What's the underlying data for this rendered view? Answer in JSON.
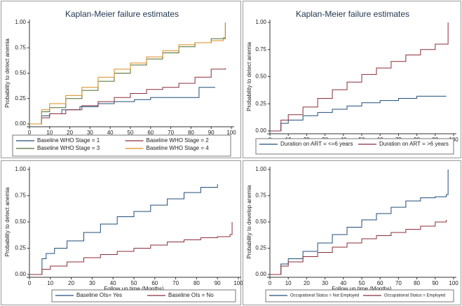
{
  "panels": [
    {
      "title": "Kaplan-Meier failure estimates",
      "ylabel": "Probability to detect anemia",
      "xlabel": "Follow up time (Months)",
      "xticks": [
        0,
        10,
        20,
        30,
        40,
        50,
        60,
        70,
        80,
        90,
        100
      ],
      "yticks": [
        "0.00",
        "0.25",
        "0.50",
        "0.75",
        "1.00"
      ],
      "legend": [
        "Baseline WHO Stage = 1",
        "Baseline WHO Stage = 2",
        "Baseline WHO Stage = 3",
        "Baseline WHO Stage = 4"
      ]
    },
    {
      "title": "Kaplan-Meier failure estimates",
      "ylabel": "Probability to detect anemia",
      "xlabel": "Follow up time (Months)",
      "xticks": [
        0,
        10,
        20,
        30,
        40,
        50,
        60,
        70,
        80,
        90,
        100
      ],
      "yticks": [
        "0.00",
        "0.25",
        "0.50",
        "0.75",
        "1.00"
      ],
      "legend": [
        "Duration on ART = <=6 years",
        "Duration on ART = >6 years"
      ]
    },
    {
      "title": "",
      "ylabel": "Probability to detect anemia",
      "xlabel": "Follow up time (Months)",
      "xticks": [
        0,
        10,
        20,
        30,
        40,
        50,
        60,
        70,
        80,
        90,
        100
      ],
      "yticks": [
        "0.00",
        "0.25",
        "0.50",
        "0.75",
        "1.00"
      ],
      "legend": [
        "Baseline OIs= Yes",
        "Baseline OIs = No"
      ]
    },
    {
      "title": "",
      "ylabel": "Probability to develop anemia",
      "xlabel": "Follow up time (Months)",
      "xticks": [
        0,
        10,
        20,
        30,
        40,
        50,
        60,
        70,
        80,
        90,
        100
      ],
      "yticks": [
        "0.00",
        "0.25",
        "0.50",
        "0.75",
        "1.00"
      ],
      "legend": [
        "Occupational Status = Not Employed",
        "Occupational Status = Employed"
      ]
    }
  ],
  "chart_data": [
    {
      "type": "line",
      "title": "Kaplan-Meier failure estimates",
      "xlabel": "Follow up time (Months)",
      "ylabel": "Probability to detect anemia",
      "xlim": [
        0,
        100
      ],
      "ylim": [
        0,
        1
      ],
      "grid": false,
      "legend_position": "bottom",
      "series": [
        {
          "name": "Baseline WHO Stage = 1",
          "color": "#1f4e79",
          "x": [
            0,
            6,
            10,
            16,
            25,
            34,
            42,
            52,
            60,
            70,
            83,
            84,
            92
          ],
          "y": [
            0,
            0.08,
            0.1,
            0.14,
            0.17,
            0.2,
            0.22,
            0.24,
            0.26,
            0.26,
            0.26,
            0.36,
            0.36
          ]
        },
        {
          "name": "Baseline WHO Stage = 2",
          "color": "#8b2d3a",
          "x": [
            0,
            6,
            10,
            18,
            26,
            34,
            42,
            50,
            58,
            66,
            74,
            82,
            90,
            97
          ],
          "y": [
            0,
            0.06,
            0.1,
            0.14,
            0.18,
            0.22,
            0.26,
            0.3,
            0.34,
            0.36,
            0.4,
            0.46,
            0.54,
            0.55
          ]
        },
        {
          "name": "Baseline WHO Stage = 3",
          "color": "#4a6b2e",
          "x": [
            0,
            6,
            10,
            18,
            26,
            34,
            42,
            50,
            58,
            66,
            74,
            82,
            90,
            96,
            97
          ],
          "y": [
            0,
            0.12,
            0.16,
            0.25,
            0.33,
            0.42,
            0.5,
            0.58,
            0.64,
            0.7,
            0.76,
            0.8,
            0.84,
            0.84,
            1.0
          ]
        },
        {
          "name": "Baseline WHO Stage = 4",
          "color": "#d98c1a",
          "x": [
            0,
            6,
            10,
            18,
            26,
            34,
            42,
            50,
            58,
            66,
            74,
            82,
            90,
            96,
            97
          ],
          "y": [
            0,
            0.14,
            0.2,
            0.28,
            0.36,
            0.46,
            0.54,
            0.6,
            0.66,
            0.72,
            0.78,
            0.8,
            0.82,
            0.85,
            1.0
          ]
        }
      ]
    },
    {
      "type": "line",
      "title": "Kaplan-Meier failure estimates",
      "xlabel": "Follow up time (Months)",
      "ylabel": "Probability to detect anemia",
      "xlim": [
        0,
        100
      ],
      "ylim": [
        0,
        1
      ],
      "grid": false,
      "legend_position": "bottom",
      "series": [
        {
          "name": "Duration on ART = <=6 years",
          "color": "#1f4e79",
          "x": [
            0,
            6,
            10,
            18,
            26,
            34,
            42,
            50,
            60,
            70,
            80,
            96
          ],
          "y": [
            0,
            0.07,
            0.1,
            0.14,
            0.17,
            0.2,
            0.23,
            0.26,
            0.28,
            0.3,
            0.32,
            0.32
          ]
        },
        {
          "name": "Duration on ART = >6 years",
          "color": "#8b2d3a",
          "x": [
            0,
            6,
            10,
            18,
            26,
            34,
            42,
            50,
            58,
            66,
            74,
            82,
            90,
            96,
            97
          ],
          "y": [
            0,
            0.1,
            0.15,
            0.22,
            0.3,
            0.38,
            0.45,
            0.52,
            0.58,
            0.64,
            0.7,
            0.75,
            0.8,
            0.8,
            1.0
          ]
        }
      ]
    },
    {
      "type": "line",
      "title": "",
      "xlabel": "Follow up time (Months)",
      "ylabel": "Probability to detect anemia",
      "xlim": [
        0,
        100
      ],
      "ylim": [
        0,
        1
      ],
      "grid": false,
      "legend_position": "bottom",
      "series": [
        {
          "name": "Baseline OIs= Yes",
          "color": "#1f4e79",
          "x": [
            0,
            6,
            8,
            12,
            18,
            26,
            34,
            42,
            50,
            58,
            66,
            74,
            82,
            90
          ],
          "y": [
            0,
            0.15,
            0.2,
            0.25,
            0.32,
            0.4,
            0.48,
            0.55,
            0.6,
            0.66,
            0.72,
            0.78,
            0.83,
            0.86
          ]
        },
        {
          "name": "Baseline OIs = No",
          "color": "#8b2d3a",
          "x": [
            0,
            6,
            10,
            18,
            26,
            34,
            42,
            50,
            58,
            66,
            74,
            82,
            90,
            96,
            97
          ],
          "y": [
            0,
            0.05,
            0.08,
            0.12,
            0.16,
            0.19,
            0.22,
            0.25,
            0.28,
            0.31,
            0.33,
            0.35,
            0.36,
            0.38,
            0.5
          ]
        }
      ]
    },
    {
      "type": "line",
      "title": "",
      "xlabel": "Follow up time (Months)",
      "ylabel": "Probability to develop anemia",
      "xlim": [
        0,
        100
      ],
      "ylim": [
        0,
        1
      ],
      "grid": false,
      "legend_position": "bottom",
      "series": [
        {
          "name": "Occupational Status = Not Employed",
          "color": "#1f4e79",
          "x": [
            0,
            6,
            10,
            18,
            26,
            34,
            42,
            50,
            58,
            66,
            74,
            82,
            90,
            96,
            97
          ],
          "y": [
            0,
            0.1,
            0.15,
            0.22,
            0.3,
            0.38,
            0.45,
            0.52,
            0.58,
            0.64,
            0.7,
            0.73,
            0.74,
            0.76,
            1.0
          ]
        },
        {
          "name": "Occupational Status = Employed",
          "color": "#8b2d3a",
          "x": [
            0,
            6,
            10,
            18,
            26,
            34,
            42,
            50,
            58,
            66,
            74,
            82,
            90,
            96
          ],
          "y": [
            0,
            0.08,
            0.12,
            0.17,
            0.21,
            0.26,
            0.3,
            0.34,
            0.37,
            0.4,
            0.43,
            0.46,
            0.5,
            0.52
          ]
        }
      ]
    }
  ]
}
